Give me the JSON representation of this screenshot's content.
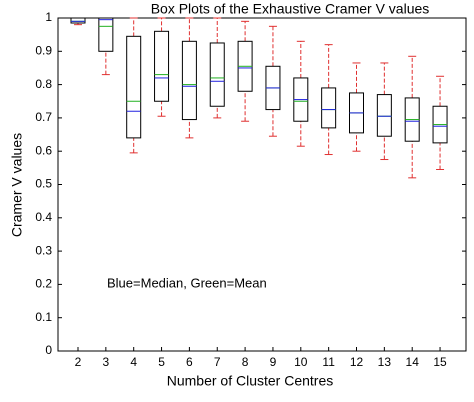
{
  "chart_data": {
    "type": "box",
    "title": "Box Plots of the Exhaustive Cramer V values",
    "x_label": "Number of Cluster Centres",
    "y_label": "Cramer V values",
    "annotation": "Blue=Median, Green=Mean",
    "categories": [
      "2",
      "3",
      "4",
      "5",
      "6",
      "7",
      "8",
      "9",
      "10",
      "11",
      "12",
      "13",
      "14",
      "15"
    ],
    "whisker_low": [
      0.98,
      0.83,
      0.595,
      0.705,
      0.64,
      0.7,
      0.69,
      0.645,
      0.615,
      0.59,
      0.6,
      0.575,
      0.52,
      0.545
    ],
    "q1": [
      0.985,
      0.9,
      0.64,
      0.75,
      0.695,
      0.735,
      0.78,
      0.725,
      0.69,
      0.67,
      0.655,
      0.645,
      0.63,
      0.625
    ],
    "median": [
      0.99,
      0.995,
      0.72,
      0.82,
      0.795,
      0.81,
      0.85,
      0.79,
      0.755,
      0.725,
      0.715,
      0.705,
      0.69,
      0.675
    ],
    "mean": [
      0.99,
      0.975,
      0.75,
      0.83,
      0.8,
      0.82,
      0.855,
      0.79,
      0.75,
      0.725,
      0.715,
      0.705,
      0.695,
      0.68
    ],
    "q3": [
      1.0,
      1.0,
      0.945,
      0.96,
      0.93,
      0.925,
      0.93,
      0.855,
      0.82,
      0.79,
      0.775,
      0.77,
      0.76,
      0.735
    ],
    "whisker_high": [
      1.0,
      1.0,
      1.0,
      1.0,
      1.0,
      1.0,
      0.99,
      0.975,
      0.93,
      0.92,
      0.865,
      0.865,
      0.885,
      0.825
    ],
    "box_color": "#000000",
    "whisker_color": "#e03030",
    "median_color": "#2020e0",
    "mean_color": "#20b020",
    "ylim": [
      0,
      1
    ],
    "yticks": [
      0,
      0.1,
      0.2,
      0.3,
      0.4,
      0.5,
      0.6,
      0.7,
      0.8,
      0.9,
      1
    ],
    "grid": false
  }
}
